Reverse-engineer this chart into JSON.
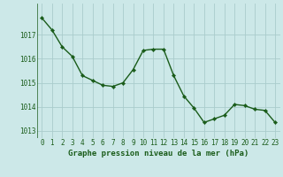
{
  "x": [
    0,
    1,
    2,
    3,
    4,
    5,
    6,
    7,
    8,
    9,
    10,
    11,
    12,
    13,
    14,
    15,
    16,
    17,
    18,
    19,
    20,
    21,
    22,
    23
  ],
  "y": [
    1017.7,
    1017.2,
    1016.5,
    1016.1,
    1015.3,
    1015.1,
    1014.9,
    1014.85,
    1015.0,
    1015.55,
    1016.35,
    1016.4,
    1016.4,
    1015.3,
    1014.45,
    1013.95,
    1013.35,
    1013.5,
    1013.65,
    1014.1,
    1014.05,
    1013.9,
    1013.85,
    1013.35
  ],
  "line_color": "#1a5c1a",
  "marker": "D",
  "marker_size": 2.2,
  "bg_color": "#cce8e8",
  "grid_color": "#aacccc",
  "xlabel": "Graphe pression niveau de la mer (hPa)",
  "xlabel_color": "#1a5c1a",
  "tick_color": "#1a5c1a",
  "ylim": [
    1012.7,
    1018.3
  ],
  "yticks": [
    1013,
    1014,
    1015,
    1016,
    1017
  ],
  "xlim": [
    -0.5,
    23.5
  ],
  "xticks": [
    0,
    1,
    2,
    3,
    4,
    5,
    6,
    7,
    8,
    9,
    10,
    11,
    12,
    13,
    14,
    15,
    16,
    17,
    18,
    19,
    20,
    21,
    22,
    23
  ],
  "tick_fontsize": 5.5,
  "xlabel_fontsize": 6.5,
  "linewidth": 1.0
}
